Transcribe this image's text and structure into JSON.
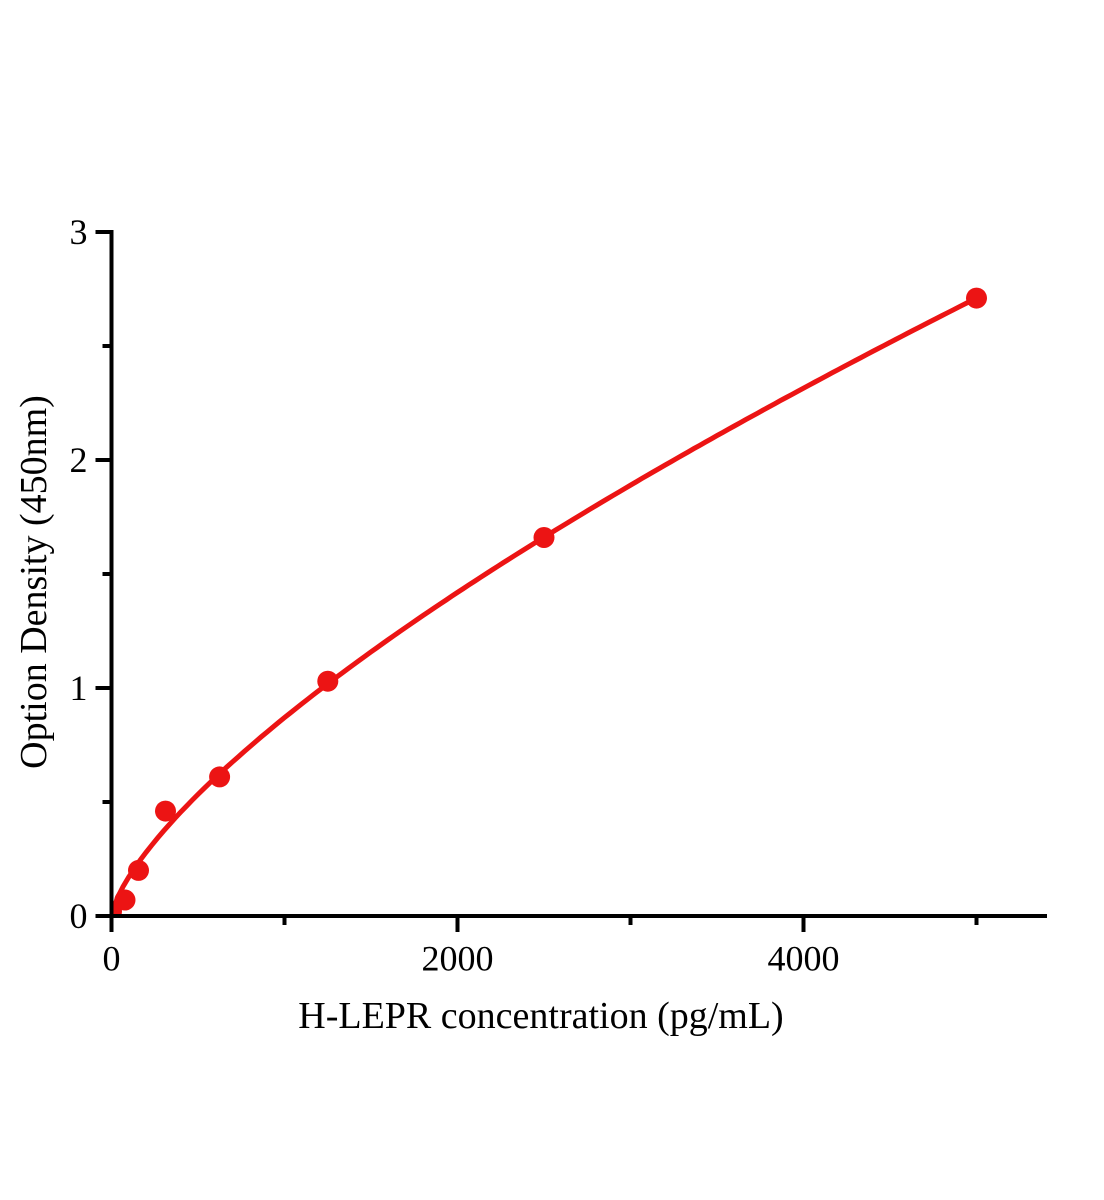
{
  "figure": {
    "background_color": "#ffffff",
    "axis_color": "#000000",
    "text_color": "#000000"
  },
  "chart_data": {
    "type": "line",
    "subtype": "standard-curve-with-markers",
    "title": "",
    "xlabel": "H-LEPR concentration (pg/mL)",
    "ylabel": "Option Density (450nm)",
    "x": [
      0,
      78,
      156,
      312,
      625,
      1250,
      2500,
      5000
    ],
    "y": [
      0.02,
      0.07,
      0.2,
      0.46,
      0.61,
      1.03,
      1.66,
      2.71
    ],
    "curve_fit": {
      "type": "power",
      "a": 0.00663,
      "b": 0.706
    },
    "xlim": [
      0,
      5400
    ],
    "ylim": [
      0,
      3
    ],
    "x_major_ticks": [
      0,
      2000,
      4000
    ],
    "x_minor_ticks": [
      1000,
      3000,
      5000
    ],
    "y_major_ticks": [
      0,
      1,
      2,
      3
    ],
    "y_minor_ticks": [
      0.5,
      1.5,
      2.5
    ],
    "grid": false,
    "legend": "none",
    "colors": {
      "line": "#ec1414",
      "marker": "#ec1414",
      "axis": "#000000"
    },
    "marker_radius": 10.5,
    "line_width": 5
  }
}
